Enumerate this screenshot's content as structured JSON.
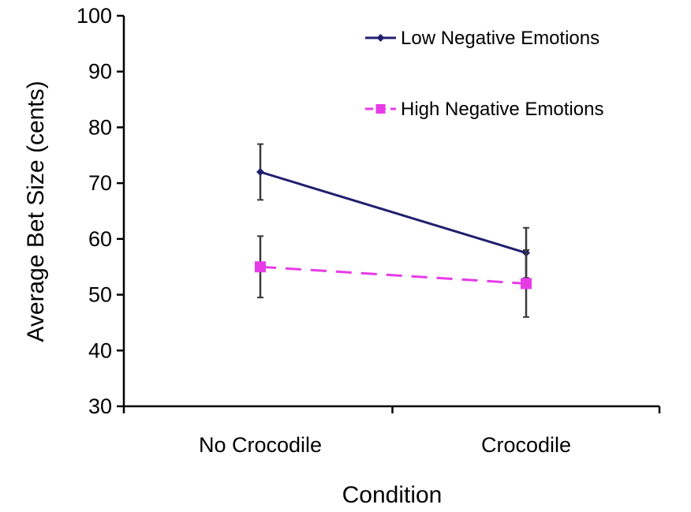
{
  "chart_data": {
    "type": "line",
    "xlabel": "Condition",
    "ylabel": "Average Bet Size (cents)",
    "categories": [
      "No Crocodile",
      "Crocodile"
    ],
    "ylim": [
      30,
      100
    ],
    "yticks": [
      30,
      40,
      50,
      60,
      70,
      80,
      90,
      100
    ],
    "grid": false,
    "legend_position": "top-right",
    "series": [
      {
        "name": "Low Negative Emotions",
        "values": [
          72,
          57.5
        ],
        "error": [
          5,
          4.5
        ],
        "color": "#1f1f6e",
        "line_style": "solid",
        "marker": "small-diamond"
      },
      {
        "name": "High Negative Emotions",
        "values": [
          55,
          52
        ],
        "error": [
          5.5,
          6
        ],
        "color": "#e83be8",
        "line_style": "dashed",
        "marker": "square"
      }
    ]
  }
}
